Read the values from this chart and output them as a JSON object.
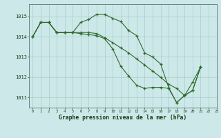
{
  "title": "Graphe pression niveau de la mer (hPa)",
  "background_color": "#cce8e8",
  "grid_color": "#aacccc",
  "line_color": "#2d6a2d",
  "xlim": [
    -0.5,
    23
  ],
  "ylim": [
    1010.5,
    1015.6
  ],
  "yticks": [
    1011,
    1012,
    1013,
    1014,
    1015
  ],
  "xticks": [
    0,
    1,
    2,
    3,
    4,
    5,
    6,
    7,
    8,
    9,
    10,
    11,
    12,
    13,
    14,
    15,
    16,
    17,
    18,
    19,
    20,
    21,
    22,
    23
  ],
  "series_x": [
    [
      0,
      1,
      2,
      3,
      4,
      5,
      6,
      7,
      8,
      9,
      10,
      11,
      12,
      13,
      14,
      15,
      16,
      17,
      18,
      19,
      20,
      21
    ],
    [
      0,
      1,
      2,
      3,
      4,
      5,
      6,
      7,
      8,
      9,
      10,
      11,
      12,
      13,
      14,
      15,
      16,
      17,
      18,
      19,
      20,
      21
    ],
    [
      0,
      1,
      2,
      3,
      4,
      5,
      6,
      7,
      8,
      9,
      10,
      11,
      12,
      13,
      14,
      15,
      16,
      17,
      18,
      19,
      20,
      21
    ]
  ],
  "series_y": [
    [
      1014.0,
      1014.7,
      1014.7,
      1014.2,
      1014.2,
      1014.2,
      1014.7,
      1014.85,
      1015.1,
      1015.1,
      1014.9,
      1014.75,
      1014.3,
      1014.05,
      1013.2,
      1013.0,
      1012.65,
      1011.5,
      1010.75,
      1011.1,
      1011.75,
      1012.5
    ],
    [
      1014.0,
      1014.7,
      1014.7,
      1014.2,
      1014.2,
      1014.2,
      1014.2,
      1014.2,
      1014.15,
      1013.95,
      1013.7,
      1013.45,
      1013.2,
      1012.9,
      1012.6,
      1012.3,
      1012.0,
      1011.65,
      1011.45,
      1011.1,
      1011.35,
      1012.5
    ],
    [
      1014.0,
      1014.7,
      1014.7,
      1014.2,
      1014.2,
      1014.2,
      1014.15,
      1014.1,
      1014.05,
      1013.9,
      1013.4,
      1012.55,
      1012.05,
      1011.6,
      1011.45,
      1011.5,
      1011.5,
      1011.45,
      1010.75,
      1011.1,
      1011.35,
      1012.5
    ]
  ]
}
